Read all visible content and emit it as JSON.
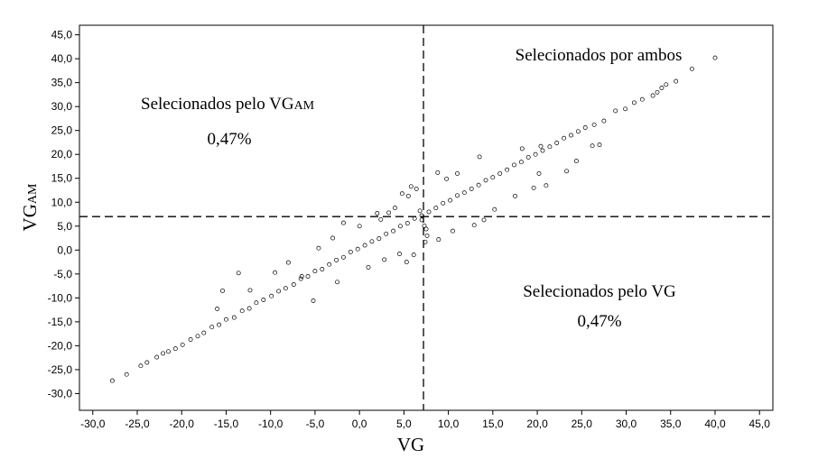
{
  "chart_data": {
    "type": "scatter",
    "xlabel": "VG",
    "ylabel_main": "VG",
    "ylabel_sub": "AM",
    "xlim": [
      -31.5,
      46.5
    ],
    "ylim": [
      -33.5,
      47.0
    ],
    "x_ticks": [
      -30,
      -25,
      -20,
      -15,
      -10,
      -5,
      0,
      5,
      10,
      15,
      20,
      25,
      30,
      35,
      40,
      45
    ],
    "x_tick_labels": [
      "-30,0",
      "-25,0",
      "-20,0",
      "-15,0",
      "-10,0",
      "-5,0",
      "0,0",
      "5,0",
      "10,0",
      "15,0",
      "20,0",
      "25,0",
      "30,0",
      "35,0",
      "40,0",
      "45,0"
    ],
    "y_ticks": [
      -30,
      -25,
      -20,
      -15,
      -10,
      -5,
      0,
      5,
      10,
      15,
      20,
      25,
      30,
      35,
      40,
      45
    ],
    "y_tick_labels": [
      "-30,0",
      "-25,0",
      "-20,0",
      "-15,0",
      "-10,0",
      "-5,0",
      "0,0",
      "5,0",
      "10,0",
      "15,0",
      "20,0",
      "25,0",
      "30,0",
      "35,0",
      "40,0",
      "45,0"
    ],
    "vline_x": 7.2,
    "hline_y": 7.0,
    "grid": false,
    "annotations": {
      "top_left_main": "Selecionados pelo VG",
      "top_left_sub": "AM",
      "top_left_pct": "0,47%",
      "top_right": "Selecionados por ambos",
      "bottom_right": "Selecionados pelo VG",
      "bottom_right_pct": "0,47%"
    },
    "points": [
      [
        -27.8,
        -27.3
      ],
      [
        -26.2,
        -26.0
      ],
      [
        -24.6,
        -24.2
      ],
      [
        -23.9,
        -23.5
      ],
      [
        -22.8,
        -22.4
      ],
      [
        -22.1,
        -21.6
      ],
      [
        -21.5,
        -21.2
      ],
      [
        -20.7,
        -20.6
      ],
      [
        -19.9,
        -19.8
      ],
      [
        -19.0,
        -18.7
      ],
      [
        -18.2,
        -18.0
      ],
      [
        -17.5,
        -17.3
      ],
      [
        -16.6,
        -16.1
      ],
      [
        -15.8,
        -15.6
      ],
      [
        -15.0,
        -14.5
      ],
      [
        -14.1,
        -14.1
      ],
      [
        -13.2,
        -12.7
      ],
      [
        -12.4,
        -12.2
      ],
      [
        -11.6,
        -11.0
      ],
      [
        -10.8,
        -10.4
      ],
      [
        -9.9,
        -9.6
      ],
      [
        -9.1,
        -8.6
      ],
      [
        -8.3,
        -8.0
      ],
      [
        -7.4,
        -7.2
      ],
      [
        -6.6,
        -6.0
      ],
      [
        -5.8,
        -5.5
      ],
      [
        -5.0,
        -4.4
      ],
      [
        -4.2,
        -4.0
      ],
      [
        -3.4,
        -3.0
      ],
      [
        -2.6,
        -2.1
      ],
      [
        -1.8,
        -1.5
      ],
      [
        -1.0,
        -0.4
      ],
      [
        -0.2,
        0.2
      ],
      [
        0.6,
        1.0
      ],
      [
        1.4,
        1.8
      ],
      [
        2.2,
        2.4
      ],
      [
        3.0,
        3.4
      ],
      [
        3.8,
        4.0
      ],
      [
        4.6,
        5.0
      ],
      [
        5.4,
        5.6
      ],
      [
        6.2,
        6.6
      ],
      [
        7.0,
        7.2
      ],
      [
        7.8,
        8.0
      ],
      [
        8.6,
        8.8
      ],
      [
        9.4,
        9.8
      ],
      [
        10.2,
        10.4
      ],
      [
        11.0,
        11.4
      ],
      [
        11.8,
        12.0
      ],
      [
        12.6,
        12.8
      ],
      [
        13.4,
        13.6
      ],
      [
        14.2,
        14.6
      ],
      [
        15.0,
        15.2
      ],
      [
        15.8,
        16.0
      ],
      [
        16.6,
        16.8
      ],
      [
        17.4,
        17.8
      ],
      [
        18.2,
        18.4
      ],
      [
        19.0,
        19.4
      ],
      [
        19.8,
        20.0
      ],
      [
        20.6,
        20.8
      ],
      [
        21.4,
        21.6
      ],
      [
        22.2,
        22.4
      ],
      [
        23.0,
        23.4
      ],
      [
        23.8,
        24.0
      ],
      [
        24.6,
        24.8
      ],
      [
        25.4,
        25.6
      ],
      [
        26.4,
        26.2
      ],
      [
        27.5,
        27.0
      ],
      [
        28.8,
        29.1
      ],
      [
        29.9,
        29.5
      ],
      [
        30.9,
        30.8
      ],
      [
        31.8,
        31.5
      ],
      [
        33.0,
        32.3
      ],
      [
        33.5,
        33.0
      ],
      [
        34.0,
        33.9
      ],
      [
        34.5,
        34.6
      ],
      [
        35.6,
        35.3
      ],
      [
        37.4,
        37.9
      ],
      [
        40.0,
        40.2
      ],
      [
        -16.0,
        -12.3
      ],
      [
        -15.4,
        -8.5
      ],
      [
        -13.6,
        -4.8
      ],
      [
        -12.3,
        -8.4
      ],
      [
        -9.5,
        -4.7
      ],
      [
        -6.5,
        -5.5
      ],
      [
        -8.0,
        -2.6
      ],
      [
        -4.6,
        0.4
      ],
      [
        -3.0,
        2.5
      ],
      [
        -1.8,
        5.7
      ],
      [
        0.0,
        5.0
      ],
      [
        2.0,
        7.7
      ],
      [
        4.0,
        8.8
      ],
      [
        5.5,
        11.3
      ],
      [
        -5.2,
        -10.6
      ],
      [
        -2.5,
        -6.7
      ],
      [
        1.0,
        -3.6
      ],
      [
        2.8,
        -2.0
      ],
      [
        4.5,
        -0.8
      ],
      [
        5.3,
        -2.5
      ],
      [
        6.1,
        -1.0
      ],
      [
        7.4,
        1.7
      ],
      [
        8.9,
        2.2
      ],
      [
        10.5,
        4.0
      ],
      [
        12.9,
        5.2
      ],
      [
        14.0,
        6.3
      ],
      [
        15.2,
        8.5
      ],
      [
        17.5,
        11.3
      ],
      [
        19.6,
        13.0
      ],
      [
        20.2,
        16.0
      ],
      [
        21.0,
        13.5
      ],
      [
        23.3,
        16.5
      ],
      [
        24.4,
        18.6
      ],
      [
        26.2,
        21.8
      ],
      [
        27.0,
        22.0
      ],
      [
        20.4,
        21.7
      ],
      [
        18.3,
        21.2
      ],
      [
        13.5,
        19.5
      ],
      [
        11.0,
        16.0
      ],
      [
        8.8,
        16.2
      ],
      [
        9.8,
        14.9
      ],
      [
        6.4,
        12.8
      ],
      [
        5.8,
        13.3
      ],
      [
        4.8,
        11.8
      ],
      [
        7.3,
        5.1
      ],
      [
        7.0,
        6.3
      ],
      [
        7.5,
        4.4
      ],
      [
        7.6,
        3.0
      ],
      [
        6.8,
        8.2
      ],
      [
        3.3,
        7.8
      ],
      [
        2.4,
        6.4
      ]
    ]
  }
}
